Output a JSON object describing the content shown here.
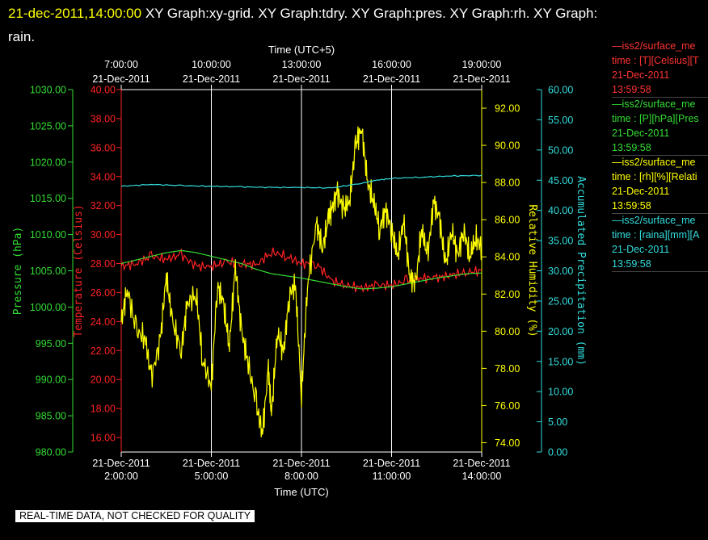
{
  "title": {
    "timestamp": "21-dec-2011,14:00:00",
    "graphs": "  XY Graph:xy-grid.  XY Graph:tdry.  XY Graph:pres.  XY Graph:rh.  XY Graph:",
    "wrap": "rain."
  },
  "banner": "REAL-TIME DATA, NOT CHECKED FOR QUALITY",
  "legend": [
    {
      "name": "—iss2/surface_me",
      "var": "time : [T][Celsius][T",
      "date": "21-Dec-2011",
      "time": "13:59:58",
      "color": "#ff3333"
    },
    {
      "name": "—iss2/surface_me",
      "var": "time : [P][hPa][Pres",
      "date": "21-Dec-2011",
      "time": "13:59:58",
      "color": "#33dd33"
    },
    {
      "name": "—iss2/surface_me",
      "var": "time : [rh][%][Relati",
      "date": "21-Dec-2011",
      "time": "13:59:58",
      "color": "#ffff00"
    },
    {
      "name": "—iss2/surface_me",
      "var": "time : [raina][mm][A",
      "date": "21-Dec-2011",
      "time": "13:59:58",
      "color": "#33dddd"
    }
  ],
  "chart_data": {
    "type": "line",
    "xlabel_bottom": "Time (UTC)",
    "xlabel_top": "Time (UTC+5)",
    "x_range_hours_utc": [
      2,
      14
    ],
    "x_ticks_bottom": [
      {
        "date": "21-Dec-2011",
        "time": "2:00:00"
      },
      {
        "date": "21-Dec-2011",
        "time": "5:00:00"
      },
      {
        "date": "21-Dec-2011",
        "time": "8:00:00"
      },
      {
        "date": "21-Dec-2011",
        "time": "11:00:00"
      },
      {
        "date": "21-Dec-2011",
        "time": "14:00:00"
      }
    ],
    "x_ticks_top": [
      {
        "time": "7:00:00",
        "date": "21-Dec-2011"
      },
      {
        "time": "10:00:00",
        "date": "21-Dec-2011"
      },
      {
        "time": "13:00:00",
        "date": "21-Dec-2011"
      },
      {
        "time": "16:00:00",
        "date": "21-Dec-2011"
      },
      {
        "time": "19:00:00",
        "date": "21-Dec-2011"
      }
    ],
    "grid": true,
    "axes": {
      "pressure": {
        "label": "Pressure (hPa)",
        "range": [
          980,
          1030
        ],
        "step": 5,
        "decimals": 2,
        "color": "#33dd33"
      },
      "temperature": {
        "label": "Temperature (Celsius)",
        "range": [
          15,
          40
        ],
        "ticks": [
          16,
          18,
          20,
          22,
          24,
          26,
          28,
          30,
          32,
          34,
          36,
          38,
          40
        ],
        "decimals": 2,
        "color": "#ff2222"
      },
      "rh": {
        "label": "Relative Humidity (%)",
        "range": [
          73.5,
          93
        ],
        "ticks": [
          74,
          76,
          78,
          80,
          82,
          84,
          86,
          88,
          90,
          92
        ],
        "decimals": 2,
        "color": "#ffff00"
      },
      "rain": {
        "label": "Accumulated Precipitation (mm)",
        "range": [
          0,
          60
        ],
        "step": 5,
        "decimals": 2,
        "color": "#33dddd"
      }
    },
    "series": [
      {
        "axis": "temperature",
        "color": "#ff2222",
        "x": [
          2.0,
          2.5,
          3.0,
          3.5,
          4.0,
          4.5,
          5.0,
          5.5,
          6.0,
          6.5,
          7.0,
          7.5,
          8.0,
          8.5,
          9.0,
          9.5,
          10.0,
          10.5,
          11.0,
          11.5,
          12.0,
          12.5,
          13.0,
          13.5,
          14.0
        ],
        "y": [
          27.8,
          28.0,
          28.5,
          28.3,
          28.6,
          27.8,
          27.8,
          28.1,
          28.0,
          27.9,
          28.8,
          28.5,
          28.0,
          28.0,
          26.8,
          26.5,
          26.3,
          26.5,
          26.5,
          26.8,
          27.0,
          27.0,
          27.2,
          27.4,
          27.5
        ],
        "noise": 0.4
      },
      {
        "axis": "pressure",
        "color": "#33dd33",
        "x": [
          2.0,
          2.5,
          3.0,
          3.5,
          4.0,
          4.5,
          5.0,
          5.5,
          6.0,
          6.5,
          7.0,
          7.5,
          8.0,
          8.5,
          9.0,
          9.5,
          10.0,
          10.5,
          11.0,
          11.5,
          12.0,
          12.5,
          13.0,
          13.5,
          14.0
        ],
        "y": [
          1006.0,
          1006.5,
          1007.0,
          1007.5,
          1007.8,
          1007.5,
          1007.0,
          1006.5,
          1006.0,
          1005.2,
          1004.6,
          1004.3,
          1004.0,
          1003.6,
          1003.2,
          1002.8,
          1002.5,
          1002.6,
          1002.8,
          1003.2,
          1003.6,
          1004.0,
          1004.3,
          1004.6,
          1004.7
        ],
        "noise": 0
      },
      {
        "axis": "rh",
        "color": "#ffff00",
        "x": [
          2.0,
          2.2,
          2.5,
          2.8,
          3.0,
          3.3,
          3.5,
          3.7,
          4.0,
          4.2,
          4.5,
          4.7,
          5.0,
          5.2,
          5.4,
          5.6,
          5.8,
          6.0,
          6.2,
          6.5,
          6.7,
          6.9,
          7.0,
          7.2,
          7.4,
          7.6,
          7.8,
          8.0,
          8.2,
          8.5,
          8.7,
          8.9,
          9.0,
          9.2,
          9.4,
          9.6,
          9.8,
          10.0,
          10.2,
          10.4,
          10.6,
          10.8,
          11.0,
          11.2,
          11.4,
          11.6,
          11.8,
          12.0,
          12.2,
          12.4,
          12.6,
          12.8,
          13.0,
          13.2,
          13.4,
          13.6,
          13.8,
          14.0
        ],
        "y": [
          80.5,
          82.3,
          80.0,
          79.6,
          77.5,
          79.5,
          83.0,
          80.5,
          79.0,
          81.5,
          82.0,
          78.5,
          77.0,
          82.5,
          81.5,
          79.2,
          83.5,
          80.0,
          78.5,
          76.0,
          74.5,
          78.0,
          75.5,
          80.0,
          78.8,
          82.0,
          82.5,
          76.5,
          82.5,
          85.8,
          84.5,
          86.0,
          86.5,
          87.5,
          86.5,
          87.0,
          90.0,
          91.0,
          88.0,
          87.0,
          85.5,
          86.5,
          85.5,
          84.0,
          86.0,
          83.0,
          82.5,
          85.5,
          84.0,
          87.0,
          86.0,
          83.5,
          85.5,
          84.0,
          85.5,
          84.0,
          85.0,
          84.5
        ],
        "noise": 0.8
      },
      {
        "axis": "rain",
        "color": "#33dddd",
        "x": [
          2.0,
          3.0,
          4.0,
          5.0,
          6.0,
          7.0,
          8.0,
          9.0,
          10.0,
          10.5,
          11.0,
          12.0,
          13.0,
          14.0
        ],
        "y": [
          44.0,
          44.3,
          44.1,
          44.0,
          43.9,
          43.8,
          43.8,
          43.7,
          44.5,
          45.0,
          45.3,
          45.5,
          45.7,
          45.8
        ],
        "noise": 0.1
      }
    ]
  }
}
